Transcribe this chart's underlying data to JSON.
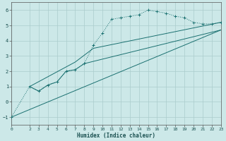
{
  "xlabel": "Humidex (Indice chaleur)",
  "bg_color": "#cce8e8",
  "grid_color": "#aacccc",
  "line_color": "#1a7070",
  "xlim": [
    0,
    23
  ],
  "ylim": [
    -1.5,
    6.5
  ],
  "xticks": [
    0,
    2,
    3,
    4,
    5,
    6,
    7,
    8,
    9,
    10,
    11,
    12,
    13,
    14,
    15,
    16,
    17,
    18,
    19,
    20,
    21,
    22,
    23
  ],
  "yticks": [
    -1,
    0,
    1,
    2,
    3,
    4,
    5,
    6
  ],
  "line1_x": [
    0,
    2,
    3,
    4,
    5,
    6,
    7,
    8,
    9,
    10,
    11,
    12,
    13,
    14,
    15,
    16,
    17,
    18,
    19,
    20,
    21,
    22,
    23
  ],
  "line1_y": [
    -1,
    1.0,
    0.7,
    1.1,
    1.3,
    2.0,
    2.1,
    2.5,
    3.7,
    4.5,
    5.4,
    5.5,
    5.6,
    5.7,
    6.0,
    5.9,
    5.8,
    5.6,
    5.5,
    5.2,
    5.1,
    5.1,
    5.2
  ],
  "line2_x": [
    2,
    3,
    4,
    5,
    6,
    7,
    8,
    23
  ],
  "line2_y": [
    1.0,
    0.7,
    1.1,
    1.3,
    2.0,
    2.1,
    2.5,
    4.7
  ],
  "line3_x": [
    0,
    23
  ],
  "line3_y": [
    -1,
    4.7
  ],
  "line4_x": [
    2,
    7,
    9,
    23
  ],
  "line4_y": [
    1.0,
    2.6,
    3.5,
    5.2
  ]
}
